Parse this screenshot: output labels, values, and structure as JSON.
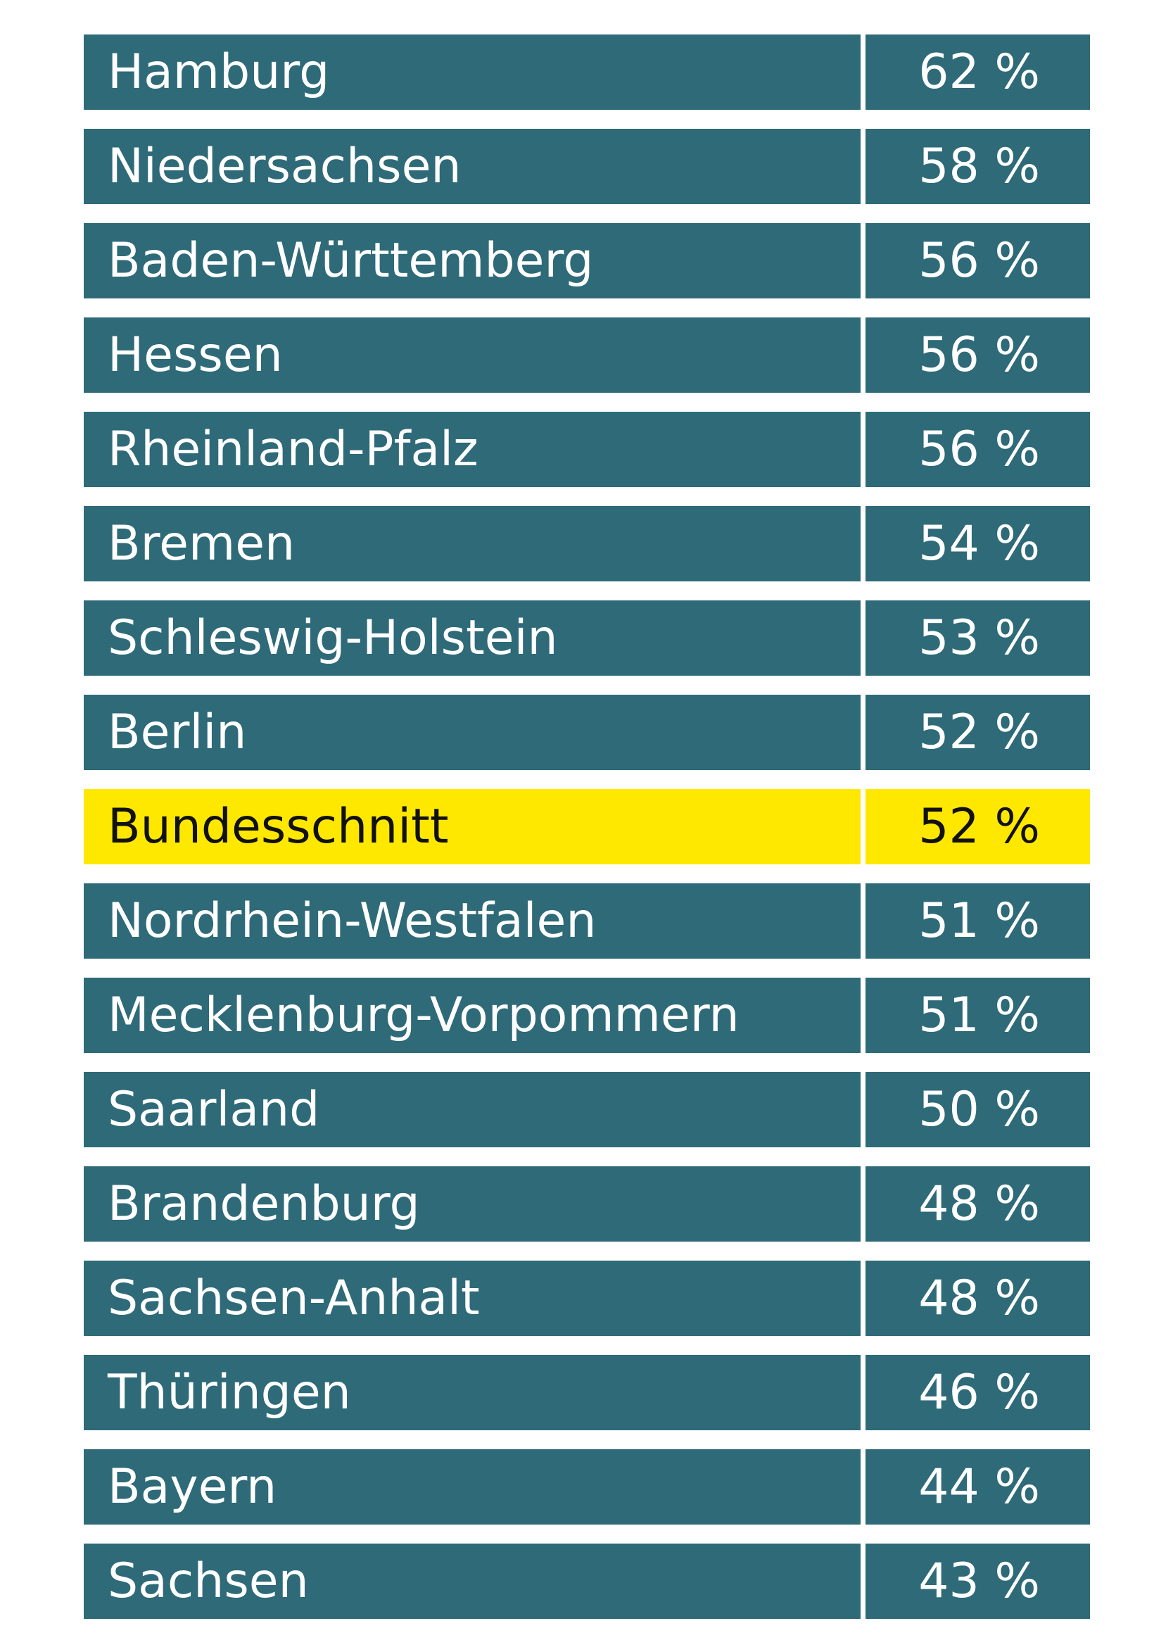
{
  "chart_data": {
    "type": "table",
    "rows": [
      {
        "name": "Hamburg",
        "value": 62,
        "label": "62 %"
      },
      {
        "name": "Niedersachsen",
        "value": 58,
        "label": "58 %"
      },
      {
        "name": "Baden-Württemberg",
        "value": 56,
        "label": "56 %"
      },
      {
        "name": "Hessen",
        "value": 56,
        "label": "56 %"
      },
      {
        "name": "Rheinland-Pfalz",
        "value": 56,
        "label": "56 %"
      },
      {
        "name": "Bremen",
        "value": 54,
        "label": "54 %"
      },
      {
        "name": "Schleswig-Holstein",
        "value": 53,
        "label": "53 %"
      },
      {
        "name": "Berlin",
        "value": 52,
        "label": "52 %"
      },
      {
        "name": "Bundesschnitt",
        "value": 52,
        "label": "52 %",
        "highlight": true
      },
      {
        "name": "Nordrhein-Westfalen",
        "value": 51,
        "label": "51 %"
      },
      {
        "name": "Mecklenburg-Vorpommern",
        "value": 51,
        "label": "51 %"
      },
      {
        "name": "Saarland",
        "value": 50,
        "label": "50 %"
      },
      {
        "name": "Brandenburg",
        "value": 48,
        "label": "48 %"
      },
      {
        "name": "Sachsen-Anhalt",
        "value": 48,
        "label": "48 %"
      },
      {
        "name": "Thüringen",
        "value": 46,
        "label": "46 %"
      },
      {
        "name": "Bayern",
        "value": 44,
        "label": "44 %"
      },
      {
        "name": "Sachsen",
        "value": 43,
        "label": "43 %"
      }
    ],
    "colors": {
      "row": "#2e6a78",
      "highlight": "#ffe800"
    }
  }
}
